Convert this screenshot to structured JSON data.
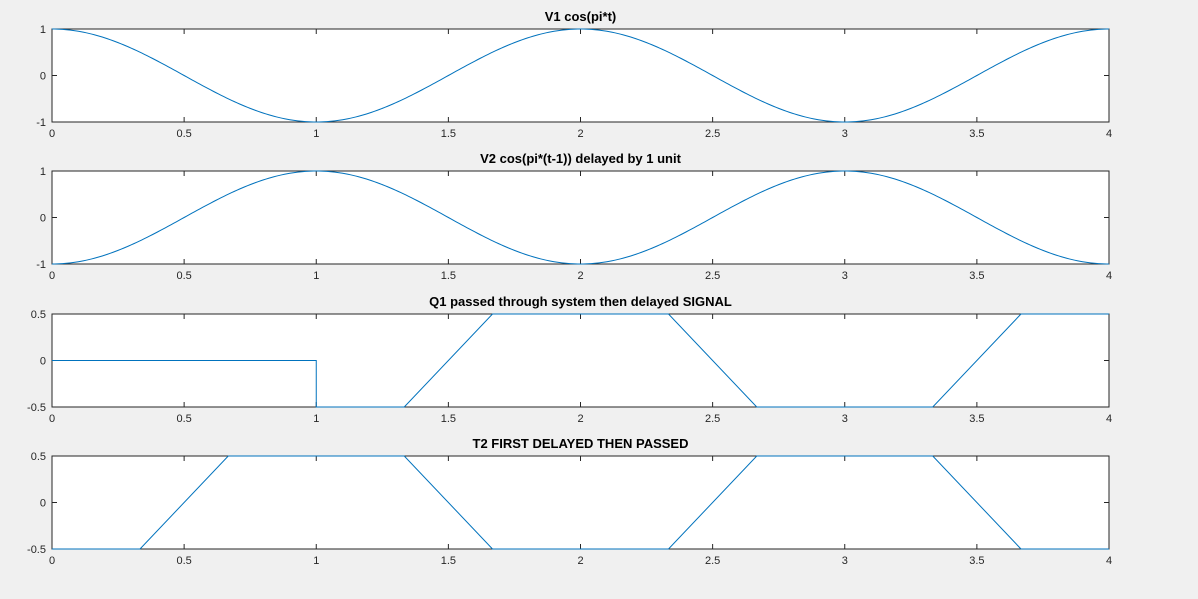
{
  "figure": {
    "background": "#f0f0f0",
    "line_color": "#0072bd"
  },
  "chart_data": [
    {
      "type": "line",
      "title": "V1 cos(pi*t)",
      "xlabel": "",
      "ylabel": "",
      "xlim": [
        0,
        4
      ],
      "ylim": [
        -1,
        1
      ],
      "xticks": [
        0,
        0.5,
        1,
        1.5,
        2,
        2.5,
        3,
        3.5,
        4
      ],
      "xticklabels": [
        "0",
        "0.5",
        "1",
        "1.5",
        "2",
        "2.5",
        "3",
        "3.5",
        "4"
      ],
      "yticks": [
        -1,
        0,
        1
      ],
      "yticklabels": [
        "-1",
        "0",
        "1"
      ],
      "grid": false,
      "function": "cos(pi*t)",
      "series": [
        {
          "x": [
            0,
            0.5,
            1,
            1.5,
            2,
            2.5,
            3,
            3.5,
            4
          ],
          "y": [
            1,
            0,
            -1,
            0,
            1,
            0,
            -1,
            0,
            1
          ]
        }
      ]
    },
    {
      "type": "line",
      "title": "V2 cos(pi*(t-1)) delayed by 1 unit",
      "xlabel": "",
      "ylabel": "",
      "xlim": [
        0,
        4
      ],
      "ylim": [
        -1,
        1
      ],
      "xticks": [
        0,
        0.5,
        1,
        1.5,
        2,
        2.5,
        3,
        3.5,
        4
      ],
      "xticklabels": [
        "0",
        "0.5",
        "1",
        "1.5",
        "2",
        "2.5",
        "3",
        "3.5",
        "4"
      ],
      "yticks": [
        -1,
        0,
        1
      ],
      "yticklabels": [
        "-1",
        "0",
        "1"
      ],
      "grid": false,
      "function": "cos(pi*(t-1))",
      "series": [
        {
          "x": [
            0,
            0.5,
            1,
            1.5,
            2,
            2.5,
            3,
            3.5,
            4
          ],
          "y": [
            -1,
            0,
            1,
            0,
            -1,
            0,
            1,
            0,
            -1
          ]
        }
      ]
    },
    {
      "type": "line",
      "title": "Q1 passed through system then delayed SIGNAL",
      "xlabel": "",
      "ylabel": "",
      "xlim": [
        0,
        4
      ],
      "ylim": [
        -0.5,
        0.5
      ],
      "xticks": [
        0,
        0.5,
        1,
        1.5,
        2,
        2.5,
        3,
        3.5,
        4
      ],
      "xticklabels": [
        "0",
        "0.5",
        "1",
        "1.5",
        "2",
        "2.5",
        "3",
        "3.5",
        "4"
      ],
      "yticks": [
        -0.5,
        0,
        0.5
      ],
      "yticklabels": [
        "-0.5",
        "0",
        "0.5"
      ],
      "grid": false,
      "series": [
        {
          "x": [
            0,
            1,
            1,
            1.333,
            1.667,
            2.333,
            2.667,
            3.333,
            3.667,
            4
          ],
          "y": [
            0,
            0,
            -0.5,
            -0.5,
            0.5,
            0.5,
            -0.5,
            -0.5,
            0.5,
            0.5
          ]
        }
      ]
    },
    {
      "type": "line",
      "title": "T2 FIRST DELAYED THEN PASSED",
      "xlabel": "",
      "ylabel": "",
      "xlim": [
        0,
        4
      ],
      "ylim": [
        -0.5,
        0.5
      ],
      "xticks": [
        0,
        0.5,
        1,
        1.5,
        2,
        2.5,
        3,
        3.5,
        4
      ],
      "xticklabels": [
        "0",
        "0.5",
        "1",
        "1.5",
        "2",
        "2.5",
        "3",
        "3.5",
        "4"
      ],
      "yticks": [
        -0.5,
        0,
        0.5
      ],
      "yticklabels": [
        "-0.5",
        "0",
        "0.5"
      ],
      "grid": false,
      "series": [
        {
          "x": [
            0,
            0.333,
            0.667,
            1.333,
            1.667,
            2.333,
            2.667,
            3.333,
            3.667,
            4
          ],
          "y": [
            -0.5,
            -0.5,
            0.5,
            0.5,
            -0.5,
            -0.5,
            0.5,
            0.5,
            -0.5,
            -0.5
          ]
        }
      ]
    }
  ]
}
